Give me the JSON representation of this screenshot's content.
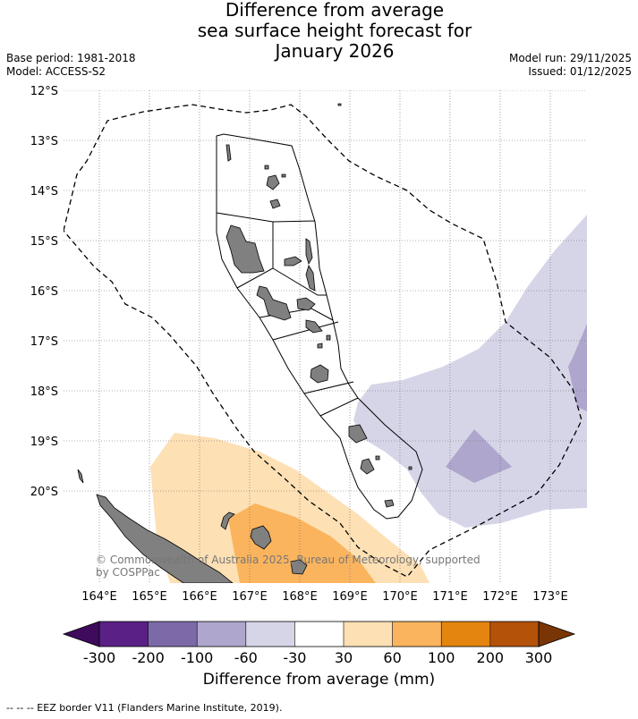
{
  "title": {
    "line1": "Difference from average",
    "line2": "sea surface height forecast for",
    "line3": "January 2026"
  },
  "meta": {
    "base_period": "Base period: 1981-2018",
    "model": "Model: ACCESS-S2",
    "model_run": "Model run: 29/11/2025",
    "issued": "Issued: 01/12/2025"
  },
  "map": {
    "lat_labels": [
      "12°S",
      "13°S",
      "14°S",
      "15°S",
      "16°S",
      "17°S",
      "18°S",
      "19°S",
      "20°S"
    ],
    "lon_labels": [
      "164°E",
      "165°E",
      "166°E",
      "167°E",
      "168°E",
      "169°E",
      "170°E",
      "171°E",
      "172°E",
      "173°E"
    ],
    "credit_line1": "© Commonwealth of Australia 2025, Bureau of Meteorology, supported",
    "credit_line2": "by COSPPac"
  },
  "colorbar": {
    "title": "Difference from average (mm)",
    "labels": [
      "-300",
      "-200",
      "-100",
      "-60",
      "-30",
      "30",
      "60",
      "100",
      "200",
      "300"
    ],
    "colors": [
      "#3f0b5c",
      "#5a2085",
      "#7c6aa8",
      "#aea6cc",
      "#d6d5e8",
      "#ffffff",
      "#fde0b4",
      "#fbb45e",
      "#e4850f",
      "#b4520a",
      "#7a3506"
    ]
  },
  "footer": "--  --  -- EEZ border V11 (Flanders Marine Institute, 2019)."
}
